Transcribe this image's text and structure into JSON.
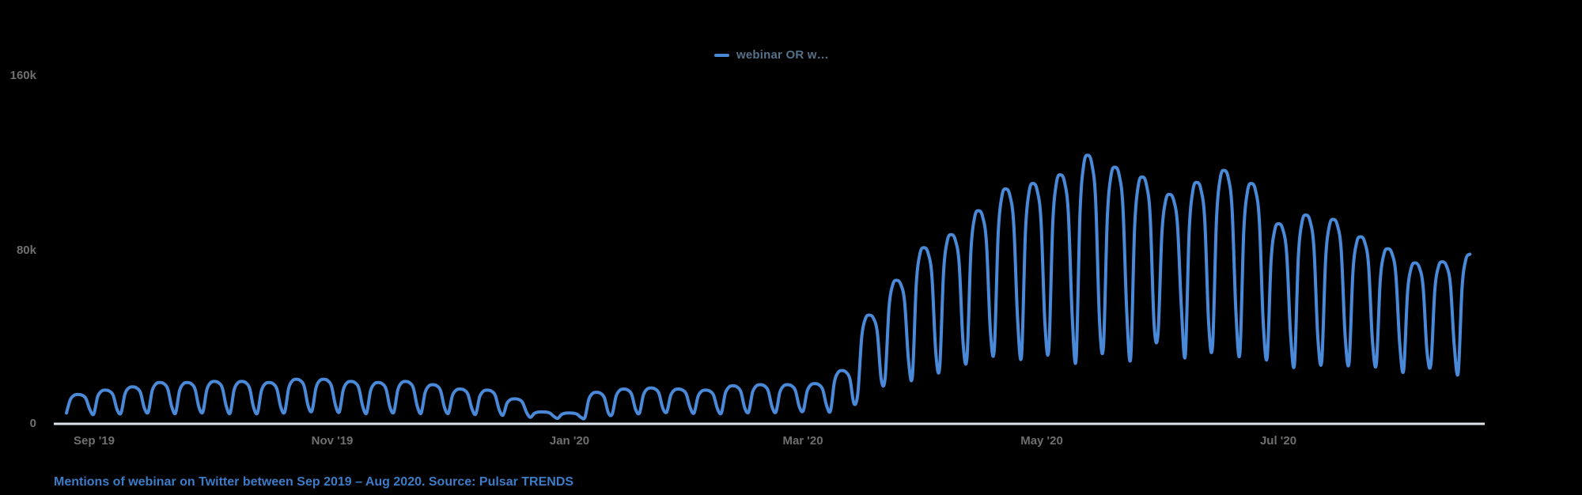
{
  "colors": {
    "background": "#000000",
    "series": "#4a89d8",
    "legend_text": "#56718a",
    "tick_text": "#6f6f6f",
    "axis_line": "#dce4ec",
    "caption": "#3c7cc8"
  },
  "legend": {
    "items": [
      {
        "label": "webinar OR w…",
        "color": "#4a89d8"
      }
    ]
  },
  "caption": {
    "text": "Mentions of webinar on Twitter between Sep 2019 – Aug 2020. Source: Pulsar TRENDS"
  },
  "chart_data": {
    "type": "line",
    "title": "Mentions of webinar on Twitter between Sep 2019 – Aug 2020. Source: Pulsar TRENDS",
    "grid": "off",
    "legend_position": "top-center",
    "y_axis": {
      "unit": "mentions",
      "ylim_k": [
        0,
        176
      ],
      "ticks": [
        {
          "label": "160k",
          "value": 160000
        },
        {
          "label": "80k",
          "value": 80000
        },
        {
          "label": "0",
          "value": 0
        }
      ]
    },
    "x_axis": {
      "range_label": "Sep 2019 – Aug 2020",
      "cadence": "daily values, one value per day, weekly oscillation (weekday peaks, weekend troughs)",
      "ticks": [
        {
          "label": "Sep '19",
          "day": 7
        },
        {
          "label": "Nov '19",
          "day": 68
        },
        {
          "label": "Jan '20",
          "day": 129
        },
        {
          "label": "Mar '20",
          "day": 189
        },
        {
          "label": "May '20",
          "day": 250
        },
        {
          "label": "Jul '20",
          "day": 311
        }
      ]
    },
    "series": [
      {
        "name": "webinar OR w…",
        "color": "#4a89d8",
        "weeks": 52,
        "weekly_peaks_k": [
          13.5,
          15.5,
          17,
          19,
          19,
          19.5,
          19.5,
          19,
          20.5,
          20.5,
          19.5,
          19,
          19.5,
          18,
          16,
          15.5,
          11.5,
          5.5,
          5,
          14.5,
          16,
          16.5,
          16,
          15.5,
          17.5,
          18,
          18,
          18.5,
          24.5,
          50,
          66,
          81,
          87,
          98,
          108,
          110.5,
          114.5,
          123.5,
          118,
          113.5,
          105.5,
          111,
          116.5,
          110.5,
          92,
          96,
          94,
          86,
          80.5,
          74,
          74.5,
          78
        ],
        "weekly_troughs_k": [
          5,
          4.5,
          5,
          5.5,
          5,
          5.5,
          5,
          5,
          5.5,
          6,
          5.5,
          5,
          5.5,
          5,
          5,
          4.5,
          4,
          3,
          2.5,
          3,
          4.5,
          5,
          5.5,
          5,
          5,
          5.5,
          5.5,
          6,
          6,
          14,
          21,
          22,
          26,
          30.5,
          34,
          31.5,
          34.5,
          30,
          35.5,
          30.5,
          41.5,
          31.5,
          36,
          32.5,
          30.5,
          27.5,
          29,
          28,
          27.5,
          24.5,
          27.5,
          23.5
        ],
        "intraweek_shape": [
          0,
          0.72,
          0.96,
          1,
          0.96,
          0.78,
          0.18
        ],
        "max_value_k": 123.5
      }
    ]
  }
}
